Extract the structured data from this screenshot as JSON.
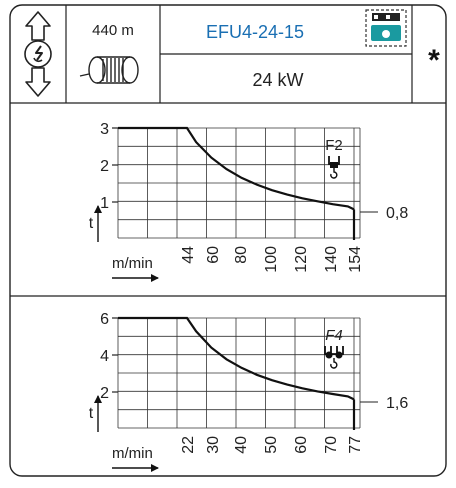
{
  "header": {
    "rope_length": "440 m",
    "model": "EFU4-24-15",
    "power": "24 kW",
    "asterisk": "*",
    "colors": {
      "model_text": "#1a6fb3",
      "icon_teal": "#1a9aa0"
    }
  },
  "chart_data": [
    {
      "type": "line",
      "reeving": "F2",
      "ylabel": "t",
      "xlabel": "m/min",
      "end_label": "0,8",
      "y_ticks": [
        "3",
        "2",
        "1"
      ],
      "x_ticks": [
        "44",
        "60",
        "80",
        "100",
        "120",
        "140",
        "154"
      ],
      "x": [
        0,
        44,
        50,
        60,
        70,
        80,
        90,
        100,
        110,
        120,
        130,
        140,
        150,
        154
      ],
      "y": [
        3.0,
        3.0,
        2.62,
        2.2,
        1.89,
        1.65,
        1.47,
        1.32,
        1.2,
        1.1,
        1.02,
        0.94,
        0.88,
        0.8
      ],
      "ylim": [
        0,
        3.2
      ],
      "grid": true
    },
    {
      "type": "line",
      "reeving": "F4",
      "ylabel": "t",
      "xlabel": "m/min",
      "end_label": "1,6",
      "y_ticks": [
        "6",
        "4",
        "2"
      ],
      "x_ticks": [
        "22",
        "30",
        "40",
        "50",
        "60",
        "70",
        "77"
      ],
      "x": [
        0,
        22,
        25,
        30,
        35,
        40,
        45,
        50,
        55,
        60,
        65,
        70,
        75,
        77
      ],
      "y": [
        6.0,
        6.0,
        5.28,
        4.4,
        3.77,
        3.3,
        2.93,
        2.64,
        2.4,
        2.2,
        2.03,
        1.89,
        1.76,
        1.6
      ],
      "ylim": [
        0,
        6.4
      ],
      "grid": true
    }
  ]
}
